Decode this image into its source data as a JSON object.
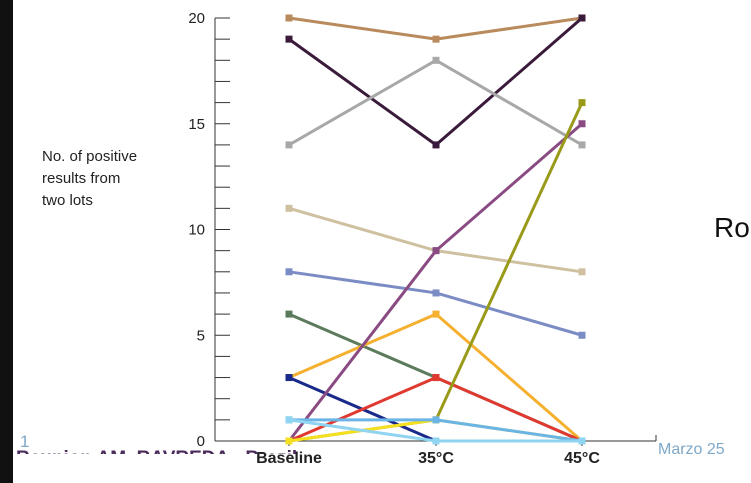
{
  "slide": {
    "side_text": "Ro",
    "slide_number": "1",
    "footer_text": "Reunion AM, RAVREDA - Brazil",
    "footer_date": "Marzo 25"
  },
  "chart_data": {
    "type": "line",
    "title": "",
    "ylabel_lines": [
      "No. of positive",
      "results from",
      "two lots"
    ],
    "xlabel": "",
    "categories": [
      "Baseline",
      "35°C",
      "45°C"
    ],
    "ylim": [
      0,
      20
    ],
    "yticks": [
      0,
      5,
      10,
      15,
      20
    ],
    "yticks_minor_step": 1,
    "grid": false,
    "series": [
      {
        "color": "#b88a5c",
        "values": [
          20,
          19,
          20
        ]
      },
      {
        "color": "#3a1a3a",
        "values": [
          19,
          14,
          20
        ]
      },
      {
        "color": "#a8a8a8",
        "values": [
          14,
          18,
          14
        ]
      },
      {
        "color": "#cfc0a0",
        "values": [
          11,
          9,
          8
        ]
      },
      {
        "color": "#7b8cc4",
        "values": [
          8,
          7,
          5
        ]
      },
      {
        "color": "#5c7a5c",
        "values": [
          6,
          3,
          0
        ]
      },
      {
        "color": "#f5b030",
        "values": [
          3,
          6,
          0
        ]
      },
      {
        "color": "#1a2a8a",
        "values": [
          3,
          0,
          0
        ]
      },
      {
        "color": "#e03a30",
        "values": [
          0,
          3,
          0
        ]
      },
      {
        "color": "#8a4a82",
        "values": [
          0,
          9,
          15
        ]
      },
      {
        "color": "#9a9a1a",
        "values": [
          0,
          1,
          16
        ]
      },
      {
        "color": "#f5e020",
        "values": [
          0,
          1,
          0
        ]
      },
      {
        "color": "#6ab4e6",
        "values": [
          1,
          1,
          0
        ]
      },
      {
        "color": "#8fd4f0",
        "values": [
          1,
          0,
          0
        ]
      }
    ]
  }
}
